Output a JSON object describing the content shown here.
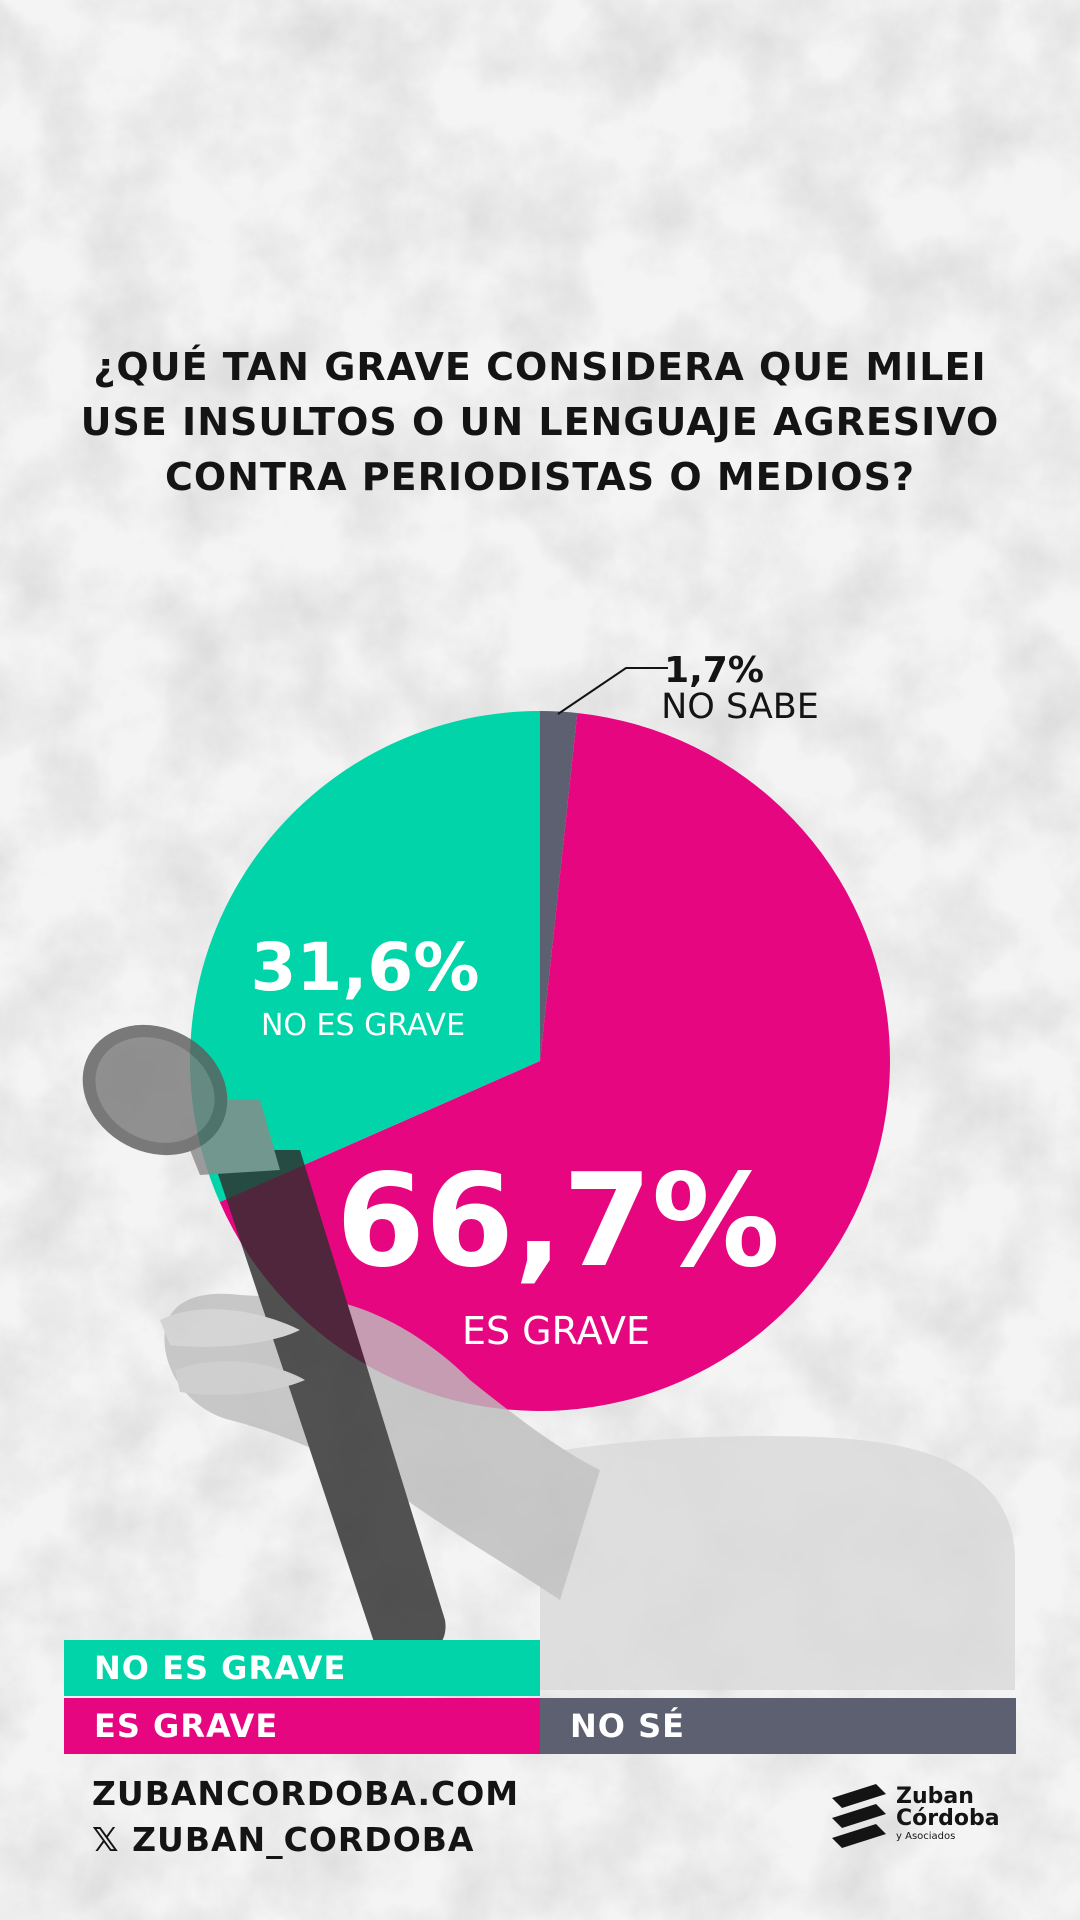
{
  "title_lines": [
    "¿QUÉ TAN GRAVE CONSIDERA QUE MILEI",
    "USE INSULTOS O UN LENGUAJE AGRESIVO",
    "CONTRA PERIODISTAS O MEDIOS?"
  ],
  "chart_data": {
    "type": "pie",
    "title": "¿QUÉ TAN GRAVE CONSIDERA QUE MILEI USE INSULTOS O UN LENGUAJE AGRESIVO CONTRA PERIODISTAS O MEDIOS?",
    "slices": [
      {
        "label": "NO SABE",
        "value": 1.7,
        "value_label": "1,7%",
        "color": "#5c6070"
      },
      {
        "label": "ES GRAVE",
        "value": 66.7,
        "value_label": "66,7%",
        "color": "#e6067f"
      },
      {
        "label": "NO ES GRAVE",
        "value": 31.6,
        "value_label": "31,6%",
        "color": "#00d4a8"
      }
    ],
    "start_angle_deg": 0,
    "direction": "clockwise",
    "legend": {
      "placement": "bottom",
      "items": [
        {
          "label": "NO ES GRAVE",
          "color": "#00d4a8"
        },
        {
          "label": "ES GRAVE",
          "color": "#e6067f"
        },
        {
          "label": "NO SÉ",
          "color": "#5c6070"
        }
      ]
    }
  },
  "footer": {
    "website": "ZUBANCORDOBA.COM",
    "x_icon": "x-logo-icon",
    "handle": "ZUBAN_CORDOBA"
  },
  "logo": {
    "line1": "Zuban",
    "line2": "Córdoba",
    "line3": "y Asociados"
  }
}
